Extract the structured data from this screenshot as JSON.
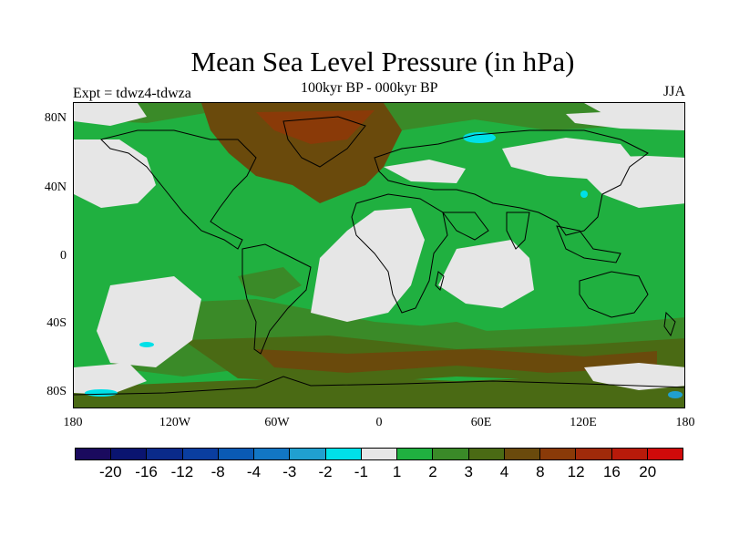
{
  "title": "Mean Sea Level Pressure (in hPa)",
  "subtitle": "100kyr BP - 000kyr BP",
  "left_label": "Expt = tdwz4-tdwza",
  "right_label": "JJA",
  "lat_labels": [
    "80N",
    "40N",
    "0",
    "40S",
    "80S"
  ],
  "lon_labels": [
    "180",
    "120W",
    "60W",
    "0",
    "60E",
    "120E",
    "180"
  ],
  "colorbar": {
    "colors": [
      "#1a0a5e",
      "#0a1470",
      "#0a2a8a",
      "#0a3ea0",
      "#0a5ab4",
      "#1276c4",
      "#20a0d0",
      "#00e0e8",
      "#e6e6e6",
      "#20b040",
      "#3a8a28",
      "#4a6a14",
      "#6a4a0c",
      "#8a3a08",
      "#a02a0a",
      "#b81a0a",
      "#d00a0a"
    ],
    "labels": [
      "-20",
      "-16",
      "-12",
      "-8",
      "-4",
      "-3",
      "-2",
      "-1",
      "1",
      "2",
      "3",
      "4",
      "8",
      "12",
      "16",
      "20"
    ]
  }
}
